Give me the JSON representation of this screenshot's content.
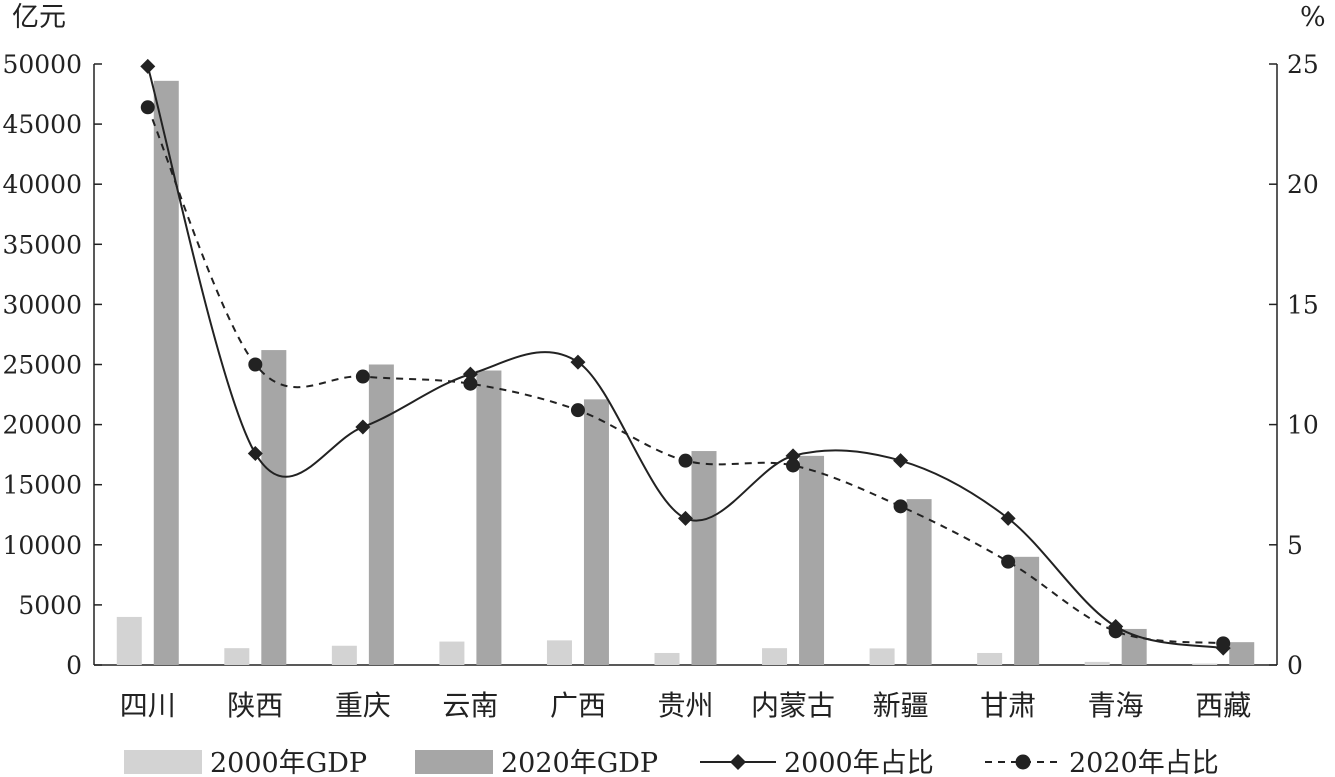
{
  "chart_data": {
    "type": "bar",
    "title": "",
    "xlabel": "",
    "left_unit": "亿元",
    "right_unit": "%",
    "ylim": [
      0,
      50000
    ],
    "y2lim": [
      0,
      25
    ],
    "y_ticks": [
      "0",
      "5000",
      "10000",
      "15000",
      "20000",
      "25000",
      "30000",
      "35000",
      "40000",
      "45000",
      "50000"
    ],
    "y2_ticks": [
      "0",
      "5",
      "10",
      "15",
      "20",
      "25"
    ],
    "categories": [
      "四川",
      "陕西",
      "重庆",
      "云南",
      "广西",
      "贵州",
      "内蒙古",
      "新疆",
      "甘肃",
      "青海",
      "西藏"
    ],
    "grid": false,
    "legend_position": "bottom",
    "series": [
      {
        "name": "2000年GDP",
        "kind": "bar",
        "axis": "left",
        "color": "#d3d3d3",
        "values": [
          4000,
          1400,
          1600,
          1950,
          2050,
          1000,
          1400,
          1380,
          1000,
          260,
          120
        ]
      },
      {
        "name": "2020年GDP",
        "kind": "bar",
        "axis": "left",
        "color": "#a6a6a6",
        "values": [
          48600,
          26200,
          25000,
          24500,
          22100,
          17800,
          17400,
          13800,
          9000,
          3000,
          1900
        ]
      },
      {
        "name": "2000年占比",
        "kind": "line",
        "axis": "right",
        "style": "solid",
        "marker": "diamond",
        "color": "#222222",
        "values": [
          24.9,
          8.8,
          9.9,
          12.1,
          12.6,
          6.1,
          8.7,
          8.5,
          6.1,
          1.6,
          0.7
        ]
      },
      {
        "name": "2020年占比",
        "kind": "line",
        "axis": "right",
        "style": "dashed",
        "marker": "circle",
        "color": "#222222",
        "values": [
          23.2,
          12.5,
          12.0,
          11.7,
          10.6,
          8.5,
          8.3,
          6.6,
          4.3,
          1.4,
          0.9
        ]
      }
    ]
  }
}
